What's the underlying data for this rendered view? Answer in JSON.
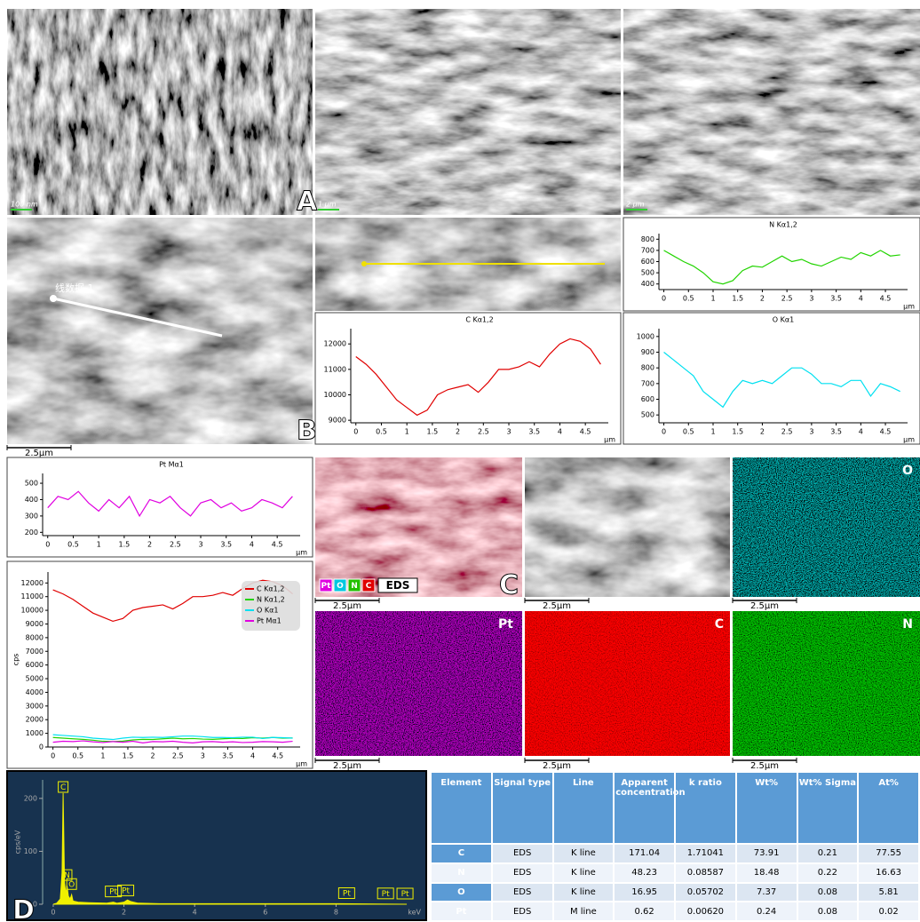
{
  "panel_labels": [
    "A",
    "B",
    "C",
    "D"
  ],
  "scale_bars": [
    "100 nm",
    "1 μm",
    "2 μm",
    "2.5μm",
    "2.5μm",
    "2.5μm",
    "2.5μm",
    "2.5μm",
    "2.5μm",
    "2.5μm"
  ],
  "line_annotation": "线数据 1",
  "line_scans": {
    "xlabel": "μm",
    "xlim": [
      -0.1,
      4.95
    ],
    "xticks": [
      0,
      0.5,
      1,
      1.5,
      2,
      2.5,
      3,
      3.5,
      4,
      4.5
    ],
    "x": [
      0,
      0.2,
      0.4,
      0.6,
      0.8,
      1,
      1.2,
      1.4,
      1.6,
      1.8,
      2,
      2.2,
      2.4,
      2.6,
      2.8,
      3,
      3.2,
      3.4,
      3.6,
      3.8,
      4,
      4.2,
      4.4,
      4.6,
      4.8
    ],
    "series": [
      {
        "name": "C Kα1,2",
        "color": "#e00000",
        "ylim": [
          8900,
          12600
        ],
        "yticks": [
          9000,
          10000,
          11000,
          12000
        ],
        "values": [
          11500,
          11200,
          10800,
          10300,
          9800,
          9500,
          9200,
          9400,
          10000,
          10200,
          10300,
          10400,
          10100,
          10500,
          11000,
          11000,
          11100,
          11300,
          11100,
          11600,
          12000,
          12200,
          12100,
          11800,
          11200
        ]
      },
      {
        "name": "N Kα1,2",
        "color": "#22d400",
        "ylim": [
          350,
          850
        ],
        "yticks": [
          400,
          500,
          600,
          700,
          800
        ],
        "values": [
          700,
          650,
          600,
          560,
          500,
          420,
          400,
          430,
          520,
          560,
          550,
          600,
          650,
          600,
          620,
          580,
          560,
          600,
          640,
          620,
          680,
          650,
          700,
          650,
          660
        ]
      },
      {
        "name": "O Kα1",
        "color": "#00e0f0",
        "ylim": [
          450,
          1050
        ],
        "yticks": [
          500,
          600,
          700,
          800,
          900,
          1000
        ],
        "values": [
          900,
          850,
          800,
          750,
          650,
          600,
          550,
          650,
          720,
          700,
          720,
          700,
          750,
          800,
          800,
          760,
          700,
          700,
          680,
          720,
          720,
          620,
          700,
          680,
          650
        ]
      },
      {
        "name": "Pt Mα1",
        "color": "#e000e0",
        "ylim": [
          180,
          560
        ],
        "yticks": [
          200,
          300,
          400,
          500
        ],
        "values": [
          350,
          420,
          400,
          450,
          380,
          330,
          400,
          350,
          420,
          300,
          400,
          380,
          420,
          350,
          300,
          380,
          400,
          350,
          380,
          330,
          350,
          400,
          380,
          350,
          420
        ]
      }
    ],
    "combined": {
      "ylabel": "cps",
      "ylim": [
        0,
        12800
      ],
      "yticks": [
        0,
        1000,
        2000,
        3000,
        4000,
        5000,
        6000,
        7000,
        8000,
        9000,
        10000,
        11000,
        12000
      ]
    }
  },
  "eds_legend": {
    "chips": [
      "Pt",
      "O",
      "N",
      "C"
    ],
    "label": "EDS"
  },
  "map_labels": [
    "O",
    "Pt",
    "C",
    "N"
  ],
  "spectrum": {
    "ylabel": "cps/eV",
    "xlabel": "keV",
    "color": "#f0f000",
    "xlim": [
      -0.3,
      10.3
    ],
    "ylim": [
      0,
      235
    ],
    "xticks": [
      0,
      2,
      4,
      6,
      8
    ],
    "yticks": [
      0,
      100,
      200
    ],
    "x": [
      0,
      0.1,
      0.2,
      0.25,
      0.28,
      0.32,
      0.36,
      0.39,
      0.43,
      0.48,
      0.52,
      0.56,
      0.7,
      1.0,
      1.5,
      1.7,
      1.8,
      2.0,
      2.1,
      2.2,
      2.4,
      3,
      5,
      8,
      10
    ],
    "values": [
      0,
      2,
      10,
      60,
      210,
      40,
      20,
      35,
      15,
      10,
      18,
      6,
      4,
      3,
      2,
      4,
      2,
      4,
      8,
      5,
      2,
      1,
      1,
      1,
      0
    ],
    "peaks": [
      {
        "label": "C",
        "x": 0.28
      },
      {
        "label": "N",
        "x": 0.39
      },
      {
        "label": "O",
        "x": 0.52
      },
      {
        "label": "Pt",
        "x": 1.7
      },
      {
        "label": "Pt",
        "x": 2.05
      },
      {
        "label": "Pt",
        "x": 8.3
      },
      {
        "label": "Pt",
        "x": 9.4
      },
      {
        "label": "Pt",
        "x": 9.95
      }
    ]
  },
  "table": {
    "header": [
      "Element",
      "Signal type",
      "Line",
      "Apparent concentration",
      "k ratio",
      "Wt%",
      "Wt% Sigma",
      "At%"
    ],
    "rows": [
      [
        "C",
        "EDS",
        "K line",
        "171.04",
        "1.71041",
        "73.91",
        "0.21",
        "77.55"
      ],
      [
        "N",
        "EDS",
        "K line",
        "48.23",
        "0.08587",
        "18.48",
        "0.22",
        "16.63"
      ],
      [
        "O",
        "EDS",
        "K line",
        "16.95",
        "0.05702",
        "7.37",
        "0.08",
        "5.81"
      ],
      [
        "Pt",
        "EDS",
        "M line",
        "0.62",
        "0.00620",
        "0.24",
        "0.08",
        "0.02"
      ]
    ]
  }
}
